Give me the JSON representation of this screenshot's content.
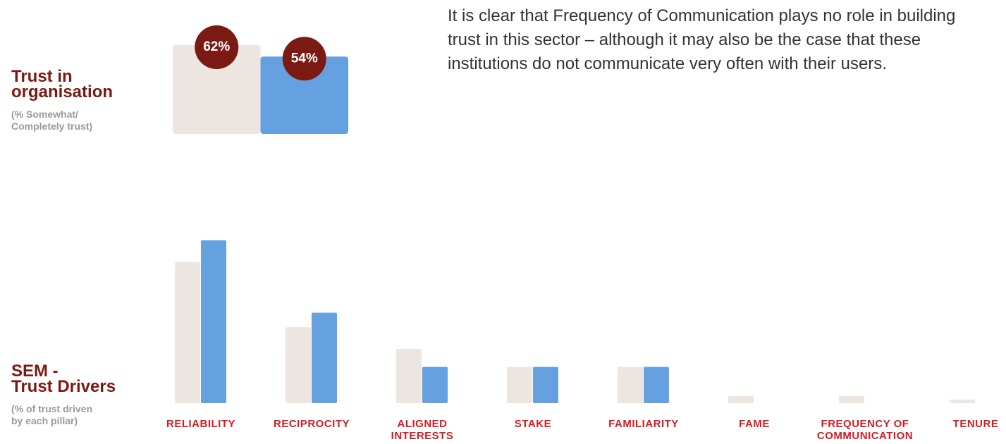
{
  "chart_data": [
    {
      "type": "bar",
      "title": "Trust in organisation",
      "subtitle": "(% Somewhat/\nCompletely trust)",
      "values": [
        62,
        54
      ],
      "value_labels": [
        "62%",
        "54%"
      ],
      "colors": [
        "#ede5e0",
        "#65a1e1"
      ],
      "label_color": "#7b1a13",
      "ylim": [
        0,
        62
      ]
    },
    {
      "type": "grouped-bar",
      "title": "SEM -\nTrust Drivers",
      "subtitle": "(% of trust driven\nby each pillar)",
      "categories": [
        "RELIABILITY",
        "RECIPROCITY",
        "ALIGNED\nINTERESTS",
        "STAKE",
        "FAMILIARITY",
        "FAME",
        "FREQUENCY OF\nCOMMUNICATION",
        "TENURE"
      ],
      "series": [
        {
          "color": "#ede5e0",
          "values": [
            39,
            21,
            15,
            10,
            10,
            2,
            2,
            1
          ]
        },
        {
          "color": "#65a1e1",
          "values": [
            45,
            25,
            10,
            10,
            10,
            0,
            0,
            0
          ]
        }
      ],
      "ylim": [
        0,
        45
      ]
    }
  ],
  "text": "It is clear that Frequency of Communication plays no role in building trust in this sector – although it may also be the case that these institutions do not communicate very often with their users."
}
